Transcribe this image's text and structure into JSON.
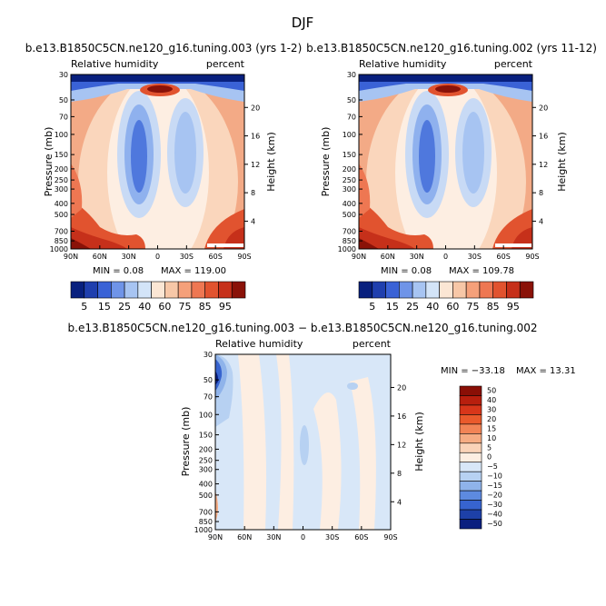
{
  "figure_title": "DJF",
  "chart_data": [
    {
      "type": "contour",
      "case": "b.e13.B1850C5CN.ne120_g16.tuning.003 (yrs 1-2)",
      "variable": "Relative humidity",
      "units": "percent",
      "ylabel": "Pressure (mb)",
      "ylabel_right": "Height (km)",
      "x_ticks": [
        "90N",
        "60N",
        "30N",
        "0",
        "30S",
        "60S",
        "90S"
      ],
      "y_ticks": [
        "30",
        "50",
        "70",
        "100",
        "150",
        "200",
        "250",
        "300",
        "400",
        "500",
        "700",
        "850",
        "1000"
      ],
      "height_ticks": [
        "20",
        "16",
        "12",
        "8",
        "4"
      ],
      "min_text": "MIN =    0.08",
      "max_text": "MAX = 119.00",
      "colorbar_labels": [
        "5",
        "15",
        "25",
        "40",
        "60",
        "75",
        "85",
        "95"
      ]
    },
    {
      "type": "contour",
      "case": "b.e13.B1850C5CN.ne120_g16.tuning.002 (yrs 11-12)",
      "variable": "Relative humidity",
      "units": "percent",
      "ylabel": "Pressure (mb)",
      "ylabel_right": "Height (km)",
      "x_ticks": [
        "90N",
        "60N",
        "30N",
        "0",
        "30S",
        "60S",
        "90S"
      ],
      "y_ticks": [
        "30",
        "50",
        "70",
        "100",
        "150",
        "200",
        "250",
        "300",
        "400",
        "500",
        "700",
        "850",
        "1000"
      ],
      "height_ticks": [
        "20",
        "16",
        "12",
        "8",
        "4"
      ],
      "min_text": "MIN =    0.08",
      "max_text": "MAX = 109.78",
      "colorbar_labels": [
        "5",
        "15",
        "25",
        "40",
        "60",
        "75",
        "85",
        "95"
      ]
    },
    {
      "type": "contour",
      "case": "b.e13.B1850C5CN.ne120_g16.tuning.003 − b.e13.B1850C5CN.ne120_g16.tuning.002",
      "variable": "Relative humidity",
      "units": "percent",
      "ylabel": "Pressure (mb)",
      "ylabel_right": "Height (km)",
      "x_ticks": [
        "90N",
        "60N",
        "30N",
        "0",
        "30S",
        "60S",
        "90S"
      ],
      "y_ticks": [
        "30",
        "50",
        "70",
        "100",
        "150",
        "200",
        "250",
        "300",
        "400",
        "500",
        "700",
        "850",
        "1000"
      ],
      "height_ticks": [
        "20",
        "16",
        "12",
        "8",
        "4"
      ],
      "min_text": "MIN = −33.18",
      "max_text": "MAX =  13.31",
      "colorbar_labels": [
        "50",
        "40",
        "30",
        "20",
        "15",
        "10",
        "5",
        "0",
        "−5",
        "−10",
        "−15",
        "−20",
        "−30",
        "−40",
        "−50"
      ]
    }
  ],
  "colors": {
    "rh_scale": [
      "#08207e",
      "#1f3fae",
      "#3a62d6",
      "#6f94e8",
      "#a7c4f2",
      "#d3e4f8",
      "#fbe6d4",
      "#f7c7a7",
      "#f5a07a",
      "#ee7752",
      "#e1532f",
      "#c6301a",
      "#8a1208"
    ],
    "diff_scale": [
      "#8a0f06",
      "#b81f0e",
      "#d8361a",
      "#ea5a2c",
      "#f28456",
      "#f6ac83",
      "#fad3b8",
      "#fdeee2",
      "#d8e7f8",
      "#b7d1f2",
      "#8fb3ea",
      "#5d8ae0",
      "#3764cf",
      "#1d40a8",
      "#0a1f7f"
    ]
  }
}
